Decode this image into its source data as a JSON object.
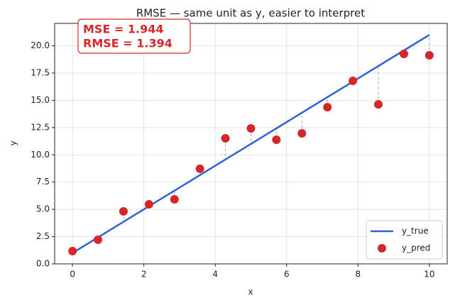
{
  "chart_data": {
    "type": "line",
    "title": "RMSE — same unit as y, easier to interpret",
    "xlabel": "x",
    "ylabel": "y",
    "x": [
      0,
      0.714,
      1.429,
      2.143,
      2.857,
      3.571,
      4.286,
      5,
      5.714,
      6.429,
      7.143,
      7.857,
      8.571,
      9.286,
      10
    ],
    "series": [
      {
        "name": "y_true",
        "color": "#2b62d9",
        "style": "line",
        "values": [
          1,
          2.43,
          3.86,
          5.29,
          6.71,
          8.14,
          9.57,
          11,
          12.43,
          13.86,
          15.29,
          16.71,
          18.14,
          19.57,
          21
        ]
      },
      {
        "name": "y_pred",
        "color": "#d62728",
        "style": "points",
        "values": [
          1.17,
          2.21,
          4.81,
          5.46,
          5.92,
          8.72,
          11.51,
          12.42,
          11.38,
          11.97,
          14.37,
          16.78,
          14.63,
          19.25,
          19.12
        ]
      }
    ],
    "annotations": [
      "MSE  = 1.944",
      "RMSE = 1.394"
    ],
    "xlim": [
      -0.5,
      10.5
    ],
    "ylim": [
      0,
      22.05
    ],
    "xticks": [
      0,
      2,
      4,
      6,
      8,
      10
    ],
    "yticks": [
      {
        "value": 0,
        "label": "0.0"
      },
      {
        "value": 2.5,
        "label": "2.5"
      },
      {
        "value": 5,
        "label": "5.0"
      },
      {
        "value": 7.5,
        "label": "7.5"
      },
      {
        "value": 10,
        "label": "10.0"
      },
      {
        "value": 12.5,
        "label": "12.5"
      },
      {
        "value": 15,
        "label": "15.0"
      },
      {
        "value": 17.5,
        "label": "17.5"
      },
      {
        "value": 20,
        "label": "20.0"
      }
    ],
    "grid": true,
    "legend": "lower right"
  }
}
